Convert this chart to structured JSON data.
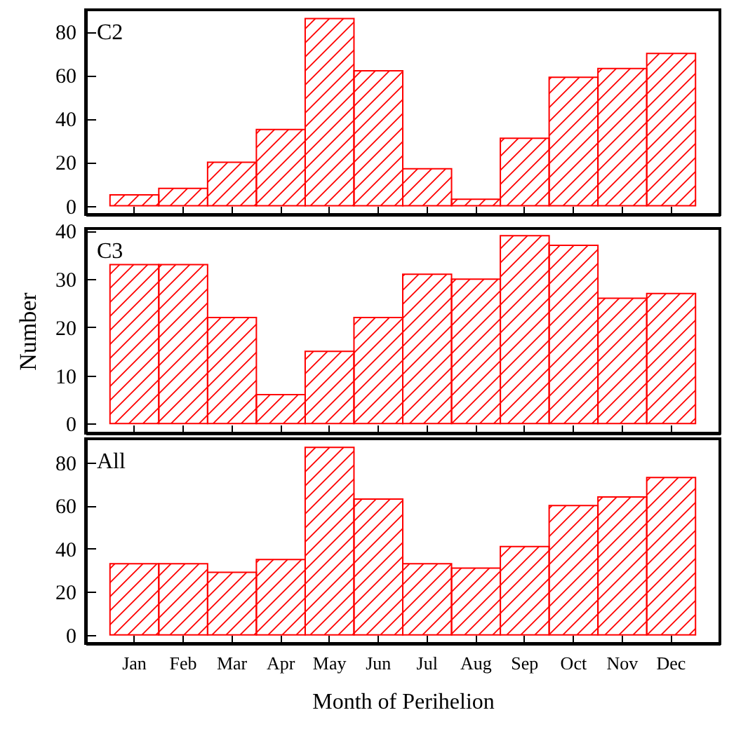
{
  "chart_data": [
    {
      "type": "bar",
      "title": "C2",
      "categories": [
        null,
        null,
        null,
        null,
        null,
        null,
        null,
        null,
        null,
        null,
        null,
        null
      ],
      "values": [
        5,
        8,
        20,
        35,
        86,
        62,
        17,
        3,
        31,
        59,
        63,
        70
      ],
      "color": "#ff0000",
      "ylim": [
        -4,
        90
      ],
      "yticks": [
        0,
        20,
        40,
        60,
        80
      ],
      "tick_labels": "y"
    },
    {
      "type": "bar",
      "title": "C3",
      "ylabel": "Number",
      "categories": [
        null,
        null,
        null,
        null,
        null,
        null,
        null,
        null,
        null,
        null,
        null,
        null
      ],
      "values": [
        33,
        33,
        22,
        6,
        15,
        22,
        31,
        30,
        39,
        37,
        26,
        27
      ],
      "color": "#ff0000",
      "ylim": [
        -2,
        40.5
      ],
      "yticks": [
        0,
        10,
        20,
        30,
        40
      ],
      "tick_labels": "y"
    },
    {
      "type": "bar",
      "title": "All",
      "xlabel": "Month of Perihelion",
      "categories": [
        "Jan",
        "Feb",
        "Mar",
        "Apr",
        "May",
        "Jun",
        "Jul",
        "Aug",
        "Sep",
        "Oct",
        "Nov",
        "Dec"
      ],
      "values": [
        33,
        33,
        29,
        35,
        87,
        63,
        33,
        31,
        41,
        60,
        64,
        73
      ],
      "color": "#ff0000",
      "ylim": [
        -4,
        91
      ],
      "yticks": [
        0,
        20,
        40,
        60,
        80
      ]
    }
  ]
}
